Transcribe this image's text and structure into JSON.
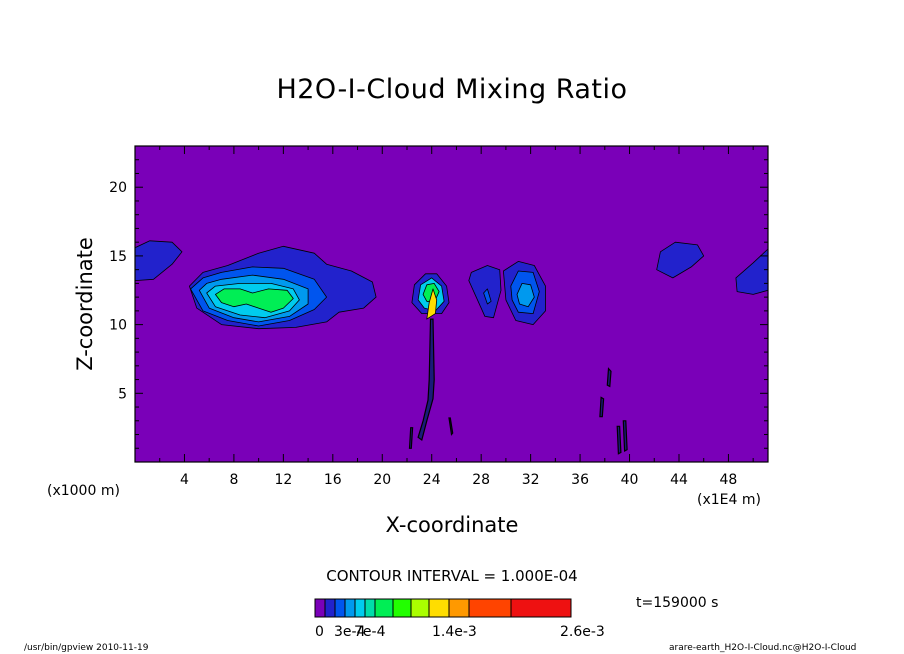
{
  "colors": {
    "background_field": "#7a00b8",
    "levels": [
      "#7a00b8",
      "#2222cc",
      "#0055ee",
      "#0099ee",
      "#00ccee",
      "#00ddaa",
      "#00ee55",
      "#22ff00",
      "#aaff00",
      "#ffdd00",
      "#ff9900",
      "#ff4400",
      "#ee1111",
      "#ffaaaa"
    ]
  },
  "chart_data": {
    "type": "contour",
    "title": "H2O-I-Cloud Mixing Ratio",
    "xlabel": "X-coordinate",
    "ylabel": "Z-coordinate",
    "x_unit_left": "(x1000 m)",
    "x_unit_right": "(x1E4 m)",
    "xlim": [
      0,
      51.2
    ],
    "ylim": [
      0,
      23
    ],
    "x_ticks": [
      4,
      8,
      12,
      16,
      20,
      24,
      28,
      32,
      36,
      40,
      44,
      48
    ],
    "y_ticks": [
      5,
      10,
      15,
      20
    ],
    "contour_interval_text": "CONTOUR INTERVAL = 1.000E-04",
    "time_text": "t=159000 s",
    "colorbar_labels": [
      "0",
      "3e-4",
      "7e-4",
      "1.4e-3",
      "2.6e-3"
    ],
    "regions": [
      {
        "name": "left-edge-cloud",
        "level": 1,
        "points": [
          [
            0,
            13.2
          ],
          [
            1.5,
            13.3
          ],
          [
            3,
            14.4
          ],
          [
            3.8,
            15.3
          ],
          [
            3,
            16
          ],
          [
            1.2,
            16.1
          ],
          [
            0,
            15.6
          ]
        ]
      },
      {
        "name": "main-cloud-outer",
        "level": 1,
        "points": [
          [
            4.4,
            12.8
          ],
          [
            5,
            11.2
          ],
          [
            7,
            10
          ],
          [
            10,
            9.7
          ],
          [
            13,
            9.8
          ],
          [
            15.5,
            10.2
          ],
          [
            16.5,
            10.9
          ],
          [
            18.5,
            11.2
          ],
          [
            19.5,
            12
          ],
          [
            19.2,
            13.1
          ],
          [
            17.5,
            13.9
          ],
          [
            15.5,
            14.4
          ],
          [
            14.5,
            15.2
          ],
          [
            12,
            15.7
          ],
          [
            10,
            15.2
          ],
          [
            7.5,
            14.3
          ],
          [
            5.5,
            13.8
          ]
        ]
      },
      {
        "name": "main-cloud-level2",
        "level": 2,
        "points": [
          [
            4.5,
            12.6
          ],
          [
            5.5,
            11
          ],
          [
            7.5,
            10.3
          ],
          [
            10,
            9.9
          ],
          [
            12.5,
            10.3
          ],
          [
            14.5,
            11.1
          ],
          [
            15.5,
            12
          ],
          [
            14.5,
            13.3
          ],
          [
            12,
            14.1
          ],
          [
            9.5,
            14.2
          ],
          [
            7,
            13.8
          ],
          [
            5.5,
            13.4
          ]
        ]
      },
      {
        "name": "main-cloud-level3",
        "level": 3,
        "points": [
          [
            5.2,
            12.5
          ],
          [
            6,
            11.2
          ],
          [
            8,
            10.5
          ],
          [
            10,
            10.2
          ],
          [
            12.5,
            10.6
          ],
          [
            14,
            11.5
          ],
          [
            14,
            12.6
          ],
          [
            12,
            13.3
          ],
          [
            9.5,
            13.6
          ],
          [
            7,
            13.3
          ],
          [
            5.8,
            13
          ]
        ]
      },
      {
        "name": "main-cloud-level4",
        "level": 4,
        "points": [
          [
            5.8,
            12.3
          ],
          [
            6.5,
            11.3
          ],
          [
            8.5,
            10.7
          ],
          [
            10.5,
            10.5
          ],
          [
            12.5,
            11
          ],
          [
            13.3,
            11.8
          ],
          [
            12.8,
            12.6
          ],
          [
            11,
            13
          ],
          [
            8.5,
            13
          ],
          [
            6.5,
            12.8
          ]
        ]
      },
      {
        "name": "main-cloud-level5",
        "level": 6,
        "points": [
          [
            6.5,
            12.2
          ],
          [
            7,
            11.6
          ],
          [
            8,
            11.3
          ],
          [
            9,
            11.5
          ],
          [
            10,
            11.2
          ],
          [
            11,
            10.9
          ],
          [
            12,
            11.2
          ],
          [
            12.8,
            11.9
          ],
          [
            12.3,
            12.5
          ],
          [
            10.8,
            12.6
          ],
          [
            9.5,
            12.3
          ],
          [
            8.5,
            12.6
          ],
          [
            7.2,
            12.6
          ]
        ]
      },
      {
        "name": "central-cell-outer",
        "level": 1,
        "points": [
          [
            22.4,
            11.6
          ],
          [
            22.6,
            12.9
          ],
          [
            23.5,
            13.7
          ],
          [
            24.4,
            13.7
          ],
          [
            25.2,
            12.8
          ],
          [
            25.4,
            11.6
          ],
          [
            24.8,
            10.8
          ],
          [
            23.2,
            10.8
          ]
        ]
      },
      {
        "name": "central-cell-level3",
        "level": 4,
        "points": [
          [
            22.9,
            11.8
          ],
          [
            23.1,
            12.9
          ],
          [
            24,
            13.4
          ],
          [
            24.8,
            12.8
          ],
          [
            25,
            11.7
          ],
          [
            24.3,
            11
          ],
          [
            23.4,
            11.2
          ]
        ]
      },
      {
        "name": "central-cell-core",
        "level": 6,
        "points": [
          [
            23.3,
            12.2
          ],
          [
            23.6,
            12.9
          ],
          [
            24.2,
            13
          ],
          [
            24.6,
            12.4
          ],
          [
            24.2,
            11.6
          ],
          [
            23.6,
            11.7
          ]
        ]
      },
      {
        "name": "central-cell-yellow",
        "level": 9,
        "points": [
          [
            23.6,
            10.4
          ],
          [
            23.8,
            11.6
          ],
          [
            24.1,
            12.6
          ],
          [
            24.4,
            11.8
          ],
          [
            24.3,
            10.8
          ]
        ]
      },
      {
        "name": "right-cloud-a",
        "level": 1,
        "points": [
          [
            27.2,
            13.8
          ],
          [
            28.5,
            14.3
          ],
          [
            29.5,
            14
          ],
          [
            29.6,
            12.5
          ],
          [
            29,
            10.5
          ],
          [
            28.3,
            10.6
          ],
          [
            27.6,
            12
          ],
          [
            27,
            13.2
          ]
        ]
      },
      {
        "name": "right-cloud-a-inner",
        "level": 2,
        "points": [
          [
            28.2,
            12.3
          ],
          [
            28.5,
            12.6
          ],
          [
            28.8,
            11.7
          ],
          [
            28.5,
            11.5
          ]
        ]
      },
      {
        "name": "right-cloud-b",
        "level": 1,
        "points": [
          [
            29.8,
            13.9
          ],
          [
            31,
            14.6
          ],
          [
            32.3,
            14.3
          ],
          [
            33.2,
            12.8
          ],
          [
            33.2,
            11
          ],
          [
            32.2,
            10
          ],
          [
            30.8,
            10.3
          ],
          [
            30,
            11.8
          ]
        ]
      },
      {
        "name": "right-cloud-b-level2",
        "level": 2,
        "points": [
          [
            30.4,
            12.8
          ],
          [
            31,
            13.9
          ],
          [
            32.2,
            13.8
          ],
          [
            32.7,
            12.4
          ],
          [
            32.2,
            10.8
          ],
          [
            31,
            10.9
          ],
          [
            30.5,
            11.8
          ]
        ]
      },
      {
        "name": "right-cloud-b-level3",
        "level": 3,
        "points": [
          [
            30.9,
            12.2
          ],
          [
            31.3,
            13
          ],
          [
            32,
            12.9
          ],
          [
            32.3,
            12
          ],
          [
            31.8,
            11.3
          ],
          [
            31.1,
            11.5
          ]
        ]
      },
      {
        "name": "right-cloud-c",
        "level": 1,
        "points": [
          [
            42.2,
            14
          ],
          [
            42.5,
            15.3
          ],
          [
            43.7,
            16
          ],
          [
            45.5,
            15.8
          ],
          [
            46,
            15
          ],
          [
            45,
            14.2
          ],
          [
            43.5,
            13.4
          ]
        ]
      },
      {
        "name": "right-edge-cloud",
        "level": 1,
        "points": [
          [
            48.7,
            12.4
          ],
          [
            48.6,
            13.4
          ],
          [
            50,
            14.5
          ],
          [
            51.2,
            15.5
          ],
          [
            51.2,
            12.5
          ],
          [
            50,
            12.2
          ]
        ]
      }
    ],
    "streaks": [
      {
        "points": [
          [
            23.9,
            10.4
          ],
          [
            23.8,
            6
          ],
          [
            23.7,
            4.5
          ],
          [
            23.3,
            3
          ],
          [
            22.9,
            1.8
          ],
          [
            23.2,
            1.6
          ],
          [
            23.6,
            3
          ],
          [
            24.1,
            4.6
          ],
          [
            24.2,
            6
          ],
          [
            24.1,
            10.4
          ]
        ]
      },
      {
        "points": [
          [
            38.3,
            6.8
          ],
          [
            38.2,
            5.6
          ],
          [
            38.4,
            5.5
          ],
          [
            38.5,
            6.6
          ]
        ]
      },
      {
        "points": [
          [
            37.7,
            4.7
          ],
          [
            37.6,
            3.3
          ],
          [
            37.8,
            3.3
          ],
          [
            37.9,
            4.6
          ]
        ]
      },
      {
        "points": [
          [
            39,
            2.6
          ],
          [
            39.1,
            0.6
          ],
          [
            39.3,
            0.7
          ],
          [
            39.2,
            2.6
          ]
        ]
      },
      {
        "points": [
          [
            39.5,
            3
          ],
          [
            39.6,
            0.8
          ],
          [
            39.8,
            0.9
          ],
          [
            39.7,
            3
          ]
        ]
      },
      {
        "points": [
          [
            25.4,
            3.2
          ],
          [
            25.6,
            2
          ],
          [
            25.7,
            2.1
          ],
          [
            25.5,
            3.2
          ]
        ]
      },
      {
        "points": [
          [
            22.3,
            2.5
          ],
          [
            22.2,
            1
          ],
          [
            22.35,
            1
          ],
          [
            22.45,
            2.5
          ]
        ]
      }
    ]
  },
  "footer": {
    "left": "/usr/bin/gpview  2010-11-19",
    "right": "arare-earth_H2O-I-Cloud.nc@H2O-I-Cloud"
  }
}
